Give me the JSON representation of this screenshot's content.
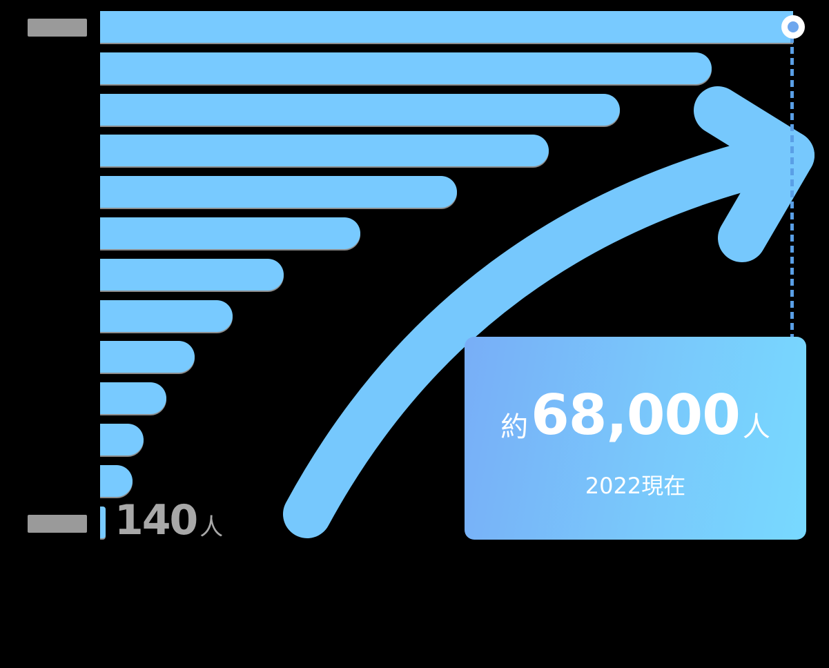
{
  "chart_data": {
    "type": "bar",
    "orientation": "horizontal",
    "series": [
      {
        "values": [
          68000,
          60000,
          51000,
          44000,
          35000,
          25500,
          18000,
          13000,
          9300,
          6500,
          4300,
          3200,
          140
        ]
      }
    ],
    "first_value_label": "140",
    "first_value_unit": "人",
    "colors": {
      "bar": "#78caff",
      "arrow": "#76c8fd",
      "marker": "#6ea7ee"
    },
    "icons": [
      "trend-arrow-icon",
      "marker-circle-icon"
    ],
    "grid": false,
    "legend": "none"
  },
  "callout": {
    "prefix": "約",
    "value": "68,000",
    "unit": "人",
    "date": "2022現在"
  }
}
